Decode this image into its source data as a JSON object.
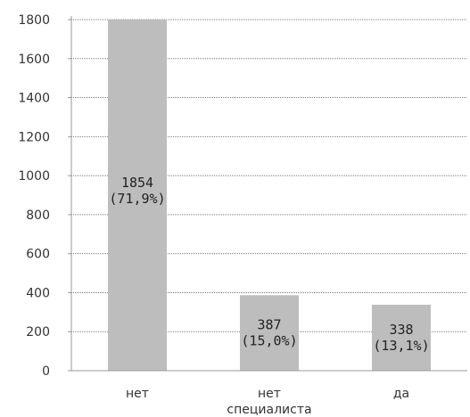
{
  "chart_data": {
    "type": "bar",
    "categories": [
      "нет",
      "нет специалиста",
      "да"
    ],
    "category_lines": [
      [
        "нет"
      ],
      [
        "нет",
        "специалиста"
      ],
      [
        "да"
      ]
    ],
    "values": [
      1854,
      387,
      338
    ],
    "data_labels": [
      [
        "1854",
        "(71,9%)"
      ],
      [
        "387",
        "(15,0%)"
      ],
      [
        "338",
        "(13,1%)"
      ]
    ],
    "y_ticks": [
      0,
      200,
      400,
      600,
      800,
      1000,
      1200,
      1400,
      1600,
      1800
    ],
    "ylim": [
      0,
      1800
    ],
    "grid": true,
    "legend": "none",
    "bar_color": "#bdbdbd"
  }
}
